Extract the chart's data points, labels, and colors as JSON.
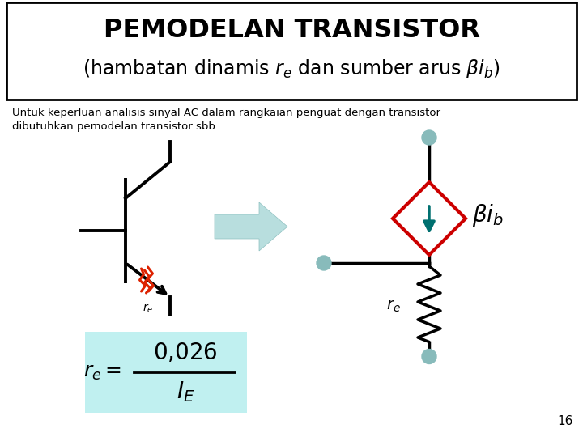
{
  "title_line1": "PEMODELAN TRANSISTOR",
  "subtitle": "Untuk keperluan analisis sinyal AC dalam rangkaian penguat dengan transistor\ndibutuhkan pemodelan transistor sbb:",
  "page_number": "16",
  "bg_color": "#ffffff",
  "border_color": "#000000",
  "title_color": "#000000",
  "subtitle_color": "#000000",
  "transistor_color": "#000000",
  "fire_color": "#dd2200",
  "arrow_fill_color": "#b8dede",
  "arrow_edge_color": "#8ec0c0",
  "diamond_color": "#cc0000",
  "teal_arrow_color": "#007070",
  "resistor_color": "#000000",
  "wire_color": "#000000",
  "dot_color": "#88bbbb",
  "formula_bg": "#c0f0f0",
  "formula_text": "#000000",
  "beta_ib_color": "#000000"
}
